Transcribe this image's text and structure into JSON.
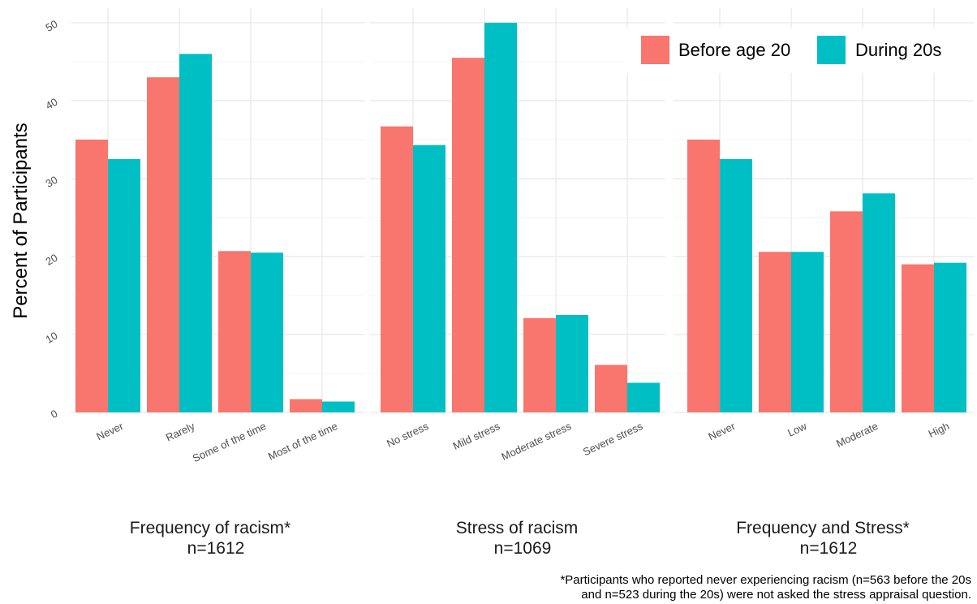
{
  "chart_data": {
    "type": "bar",
    "ylabel": "Percent of Participants",
    "ylim": [
      0,
      51
    ],
    "yticks": [
      0,
      10,
      20,
      30,
      40,
      50
    ],
    "legend": {
      "position": "top-right",
      "entries": [
        {
          "name": "Before age 20",
          "color": "#F8766D"
        },
        {
          "name": "During 20s",
          "color": "#00BFC4"
        }
      ]
    },
    "panels": [
      {
        "title_line1": "Frequency of racism*",
        "title_line2": "n=1612",
        "categories": [
          "Never",
          "Rarely",
          "Some of the time",
          "Most of the time"
        ],
        "series": [
          {
            "name": "Before age 20",
            "values": [
              35.0,
              43.0,
              20.7,
              1.7
            ]
          },
          {
            "name": "During 20s",
            "values": [
              32.5,
              46.0,
              20.5,
              1.4
            ]
          }
        ]
      },
      {
        "title_line1": "Stress of racism",
        "title_line2": "n=1069",
        "categories": [
          "No stress",
          "Mild stress",
          "Moderate stress",
          "Severe stress"
        ],
        "series": [
          {
            "name": "Before age 20",
            "values": [
              36.7,
              45.5,
              12.1,
              6.1
            ]
          },
          {
            "name": "During 20s",
            "values": [
              34.3,
              50.0,
              12.5,
              3.8
            ]
          }
        ]
      },
      {
        "title_line1": "Frequency and Stress*",
        "title_line2": "n=1612",
        "categories": [
          "Never",
          "Low",
          "Moderate",
          "High"
        ],
        "series": [
          {
            "name": "Before age 20",
            "values": [
              35.0,
              20.6,
              25.8,
              19.0
            ]
          },
          {
            "name": "During 20s",
            "values": [
              32.5,
              20.6,
              28.1,
              19.2
            ]
          }
        ]
      }
    ],
    "footnote_line1": "*Participants who reported never experiencing racism (n=563 before the 20s",
    "footnote_line2": "and n=523 during the 20s) were not asked the stress appraisal question."
  }
}
